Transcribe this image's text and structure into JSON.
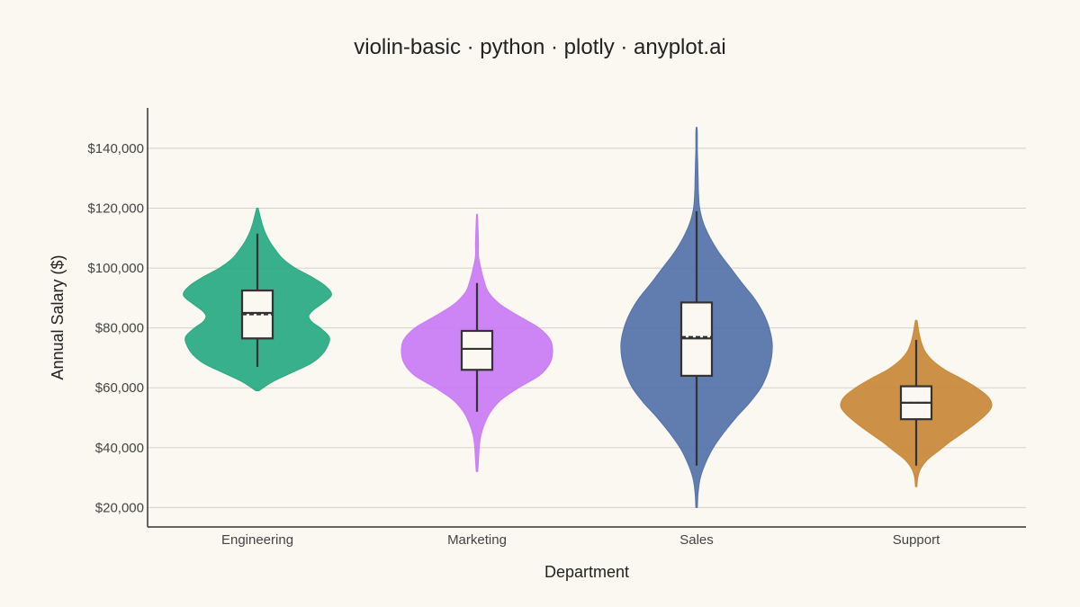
{
  "chart_data": {
    "type": "violin",
    "title": "violin-basic · python · plotly · anyplot.ai",
    "xlabel": "Department",
    "ylabel": "Annual Salary ($)",
    "ylim": [
      13500,
      153500
    ],
    "yticks": [
      20000,
      40000,
      60000,
      80000,
      100000,
      120000,
      140000
    ],
    "ytick_labels": [
      "$20,000",
      "$40,000",
      "$60,000",
      "$80,000",
      "$100,000",
      "$120,000",
      "$140,000"
    ],
    "grid": "horizontal",
    "categories": [
      "Engineering",
      "Marketing",
      "Sales",
      "Support"
    ],
    "series": [
      {
        "category": "Engineering",
        "color": "#2AAA84",
        "min": 59000,
        "max": 120000,
        "whisker_low": 67000,
        "q1": 76500,
        "median": 85000,
        "mean": 84500,
        "q3": 92500,
        "whisker_high": 111500,
        "density": [
          [
            59000,
            0.02
          ],
          [
            62000,
            0.2
          ],
          [
            65000,
            0.45
          ],
          [
            68000,
            0.7
          ],
          [
            71000,
            0.85
          ],
          [
            74000,
            0.93
          ],
          [
            77000,
            0.95
          ],
          [
            80000,
            0.83
          ],
          [
            82000,
            0.72
          ],
          [
            84000,
            0.68
          ],
          [
            86000,
            0.74
          ],
          [
            88000,
            0.85
          ],
          [
            91000,
            0.98
          ],
          [
            94000,
            0.9
          ],
          [
            97000,
            0.72
          ],
          [
            100000,
            0.5
          ],
          [
            103000,
            0.34
          ],
          [
            106000,
            0.24
          ],
          [
            109000,
            0.16
          ],
          [
            112000,
            0.1
          ],
          [
            115000,
            0.06
          ],
          [
            118000,
            0.03
          ],
          [
            120000,
            0.01
          ]
        ]
      },
      {
        "category": "Marketing",
        "color": "#C97CF5",
        "min": 32000,
        "max": 118000,
        "whisker_low": 52000,
        "q1": 66000,
        "median": 73000,
        "mean": 73000,
        "q3": 79000,
        "whisker_high": 95000,
        "density": [
          [
            32000,
            0.01
          ],
          [
            36000,
            0.02
          ],
          [
            40000,
            0.03
          ],
          [
            44000,
            0.05
          ],
          [
            48000,
            0.1
          ],
          [
            52000,
            0.18
          ],
          [
            56000,
            0.32
          ],
          [
            60000,
            0.55
          ],
          [
            64000,
            0.82
          ],
          [
            68000,
            0.96
          ],
          [
            72000,
            1.0
          ],
          [
            76000,
            0.97
          ],
          [
            80000,
            0.82
          ],
          [
            84000,
            0.55
          ],
          [
            88000,
            0.3
          ],
          [
            92000,
            0.15
          ],
          [
            96000,
            0.09
          ],
          [
            100000,
            0.05
          ],
          [
            104000,
            0.02
          ],
          [
            108000,
            0.02
          ],
          [
            112000,
            0.015
          ],
          [
            116000,
            0.01
          ],
          [
            118000,
            0.005
          ]
        ]
      },
      {
        "category": "Sales",
        "color": "#5572AA",
        "min": 20000,
        "max": 147000,
        "whisker_low": 34000,
        "q1": 64000,
        "median": 76500,
        "mean": 77000,
        "q3": 88500,
        "whisker_high": 119000,
        "density": [
          [
            20000,
            0.01
          ],
          [
            25000,
            0.02
          ],
          [
            30000,
            0.05
          ],
          [
            35000,
            0.12
          ],
          [
            40000,
            0.22
          ],
          [
            45000,
            0.36
          ],
          [
            50000,
            0.52
          ],
          [
            55000,
            0.7
          ],
          [
            60000,
            0.85
          ],
          [
            65000,
            0.94
          ],
          [
            70000,
            0.99
          ],
          [
            75000,
            1.0
          ],
          [
            80000,
            0.96
          ],
          [
            85000,
            0.88
          ],
          [
            90000,
            0.76
          ],
          [
            95000,
            0.6
          ],
          [
            100000,
            0.45
          ],
          [
            105000,
            0.3
          ],
          [
            110000,
            0.18
          ],
          [
            115000,
            0.09
          ],
          [
            120000,
            0.04
          ],
          [
            125000,
            0.025
          ],
          [
            130000,
            0.02
          ],
          [
            135000,
            0.015
          ],
          [
            140000,
            0.01
          ],
          [
            145000,
            0.01
          ],
          [
            147000,
            0.005
          ]
        ]
      },
      {
        "category": "Support",
        "color": "#C8893A",
        "min": 27000,
        "max": 82500,
        "whisker_low": 34000,
        "q1": 49500,
        "median": 55000,
        "mean": 55000,
        "q3": 60500,
        "whisker_high": 76000,
        "density": [
          [
            27000,
            0.01
          ],
          [
            30000,
            0.02
          ],
          [
            33000,
            0.06
          ],
          [
            36000,
            0.15
          ],
          [
            39000,
            0.3
          ],
          [
            42000,
            0.45
          ],
          [
            45000,
            0.62
          ],
          [
            48000,
            0.78
          ],
          [
            51000,
            0.92
          ],
          [
            54000,
            1.0
          ],
          [
            57000,
            0.95
          ],
          [
            60000,
            0.8
          ],
          [
            63000,
            0.6
          ],
          [
            66000,
            0.38
          ],
          [
            69000,
            0.22
          ],
          [
            72000,
            0.12
          ],
          [
            75000,
            0.07
          ],
          [
            78000,
            0.04
          ],
          [
            81000,
            0.02
          ],
          [
            82500,
            0.01
          ]
        ]
      }
    ]
  }
}
